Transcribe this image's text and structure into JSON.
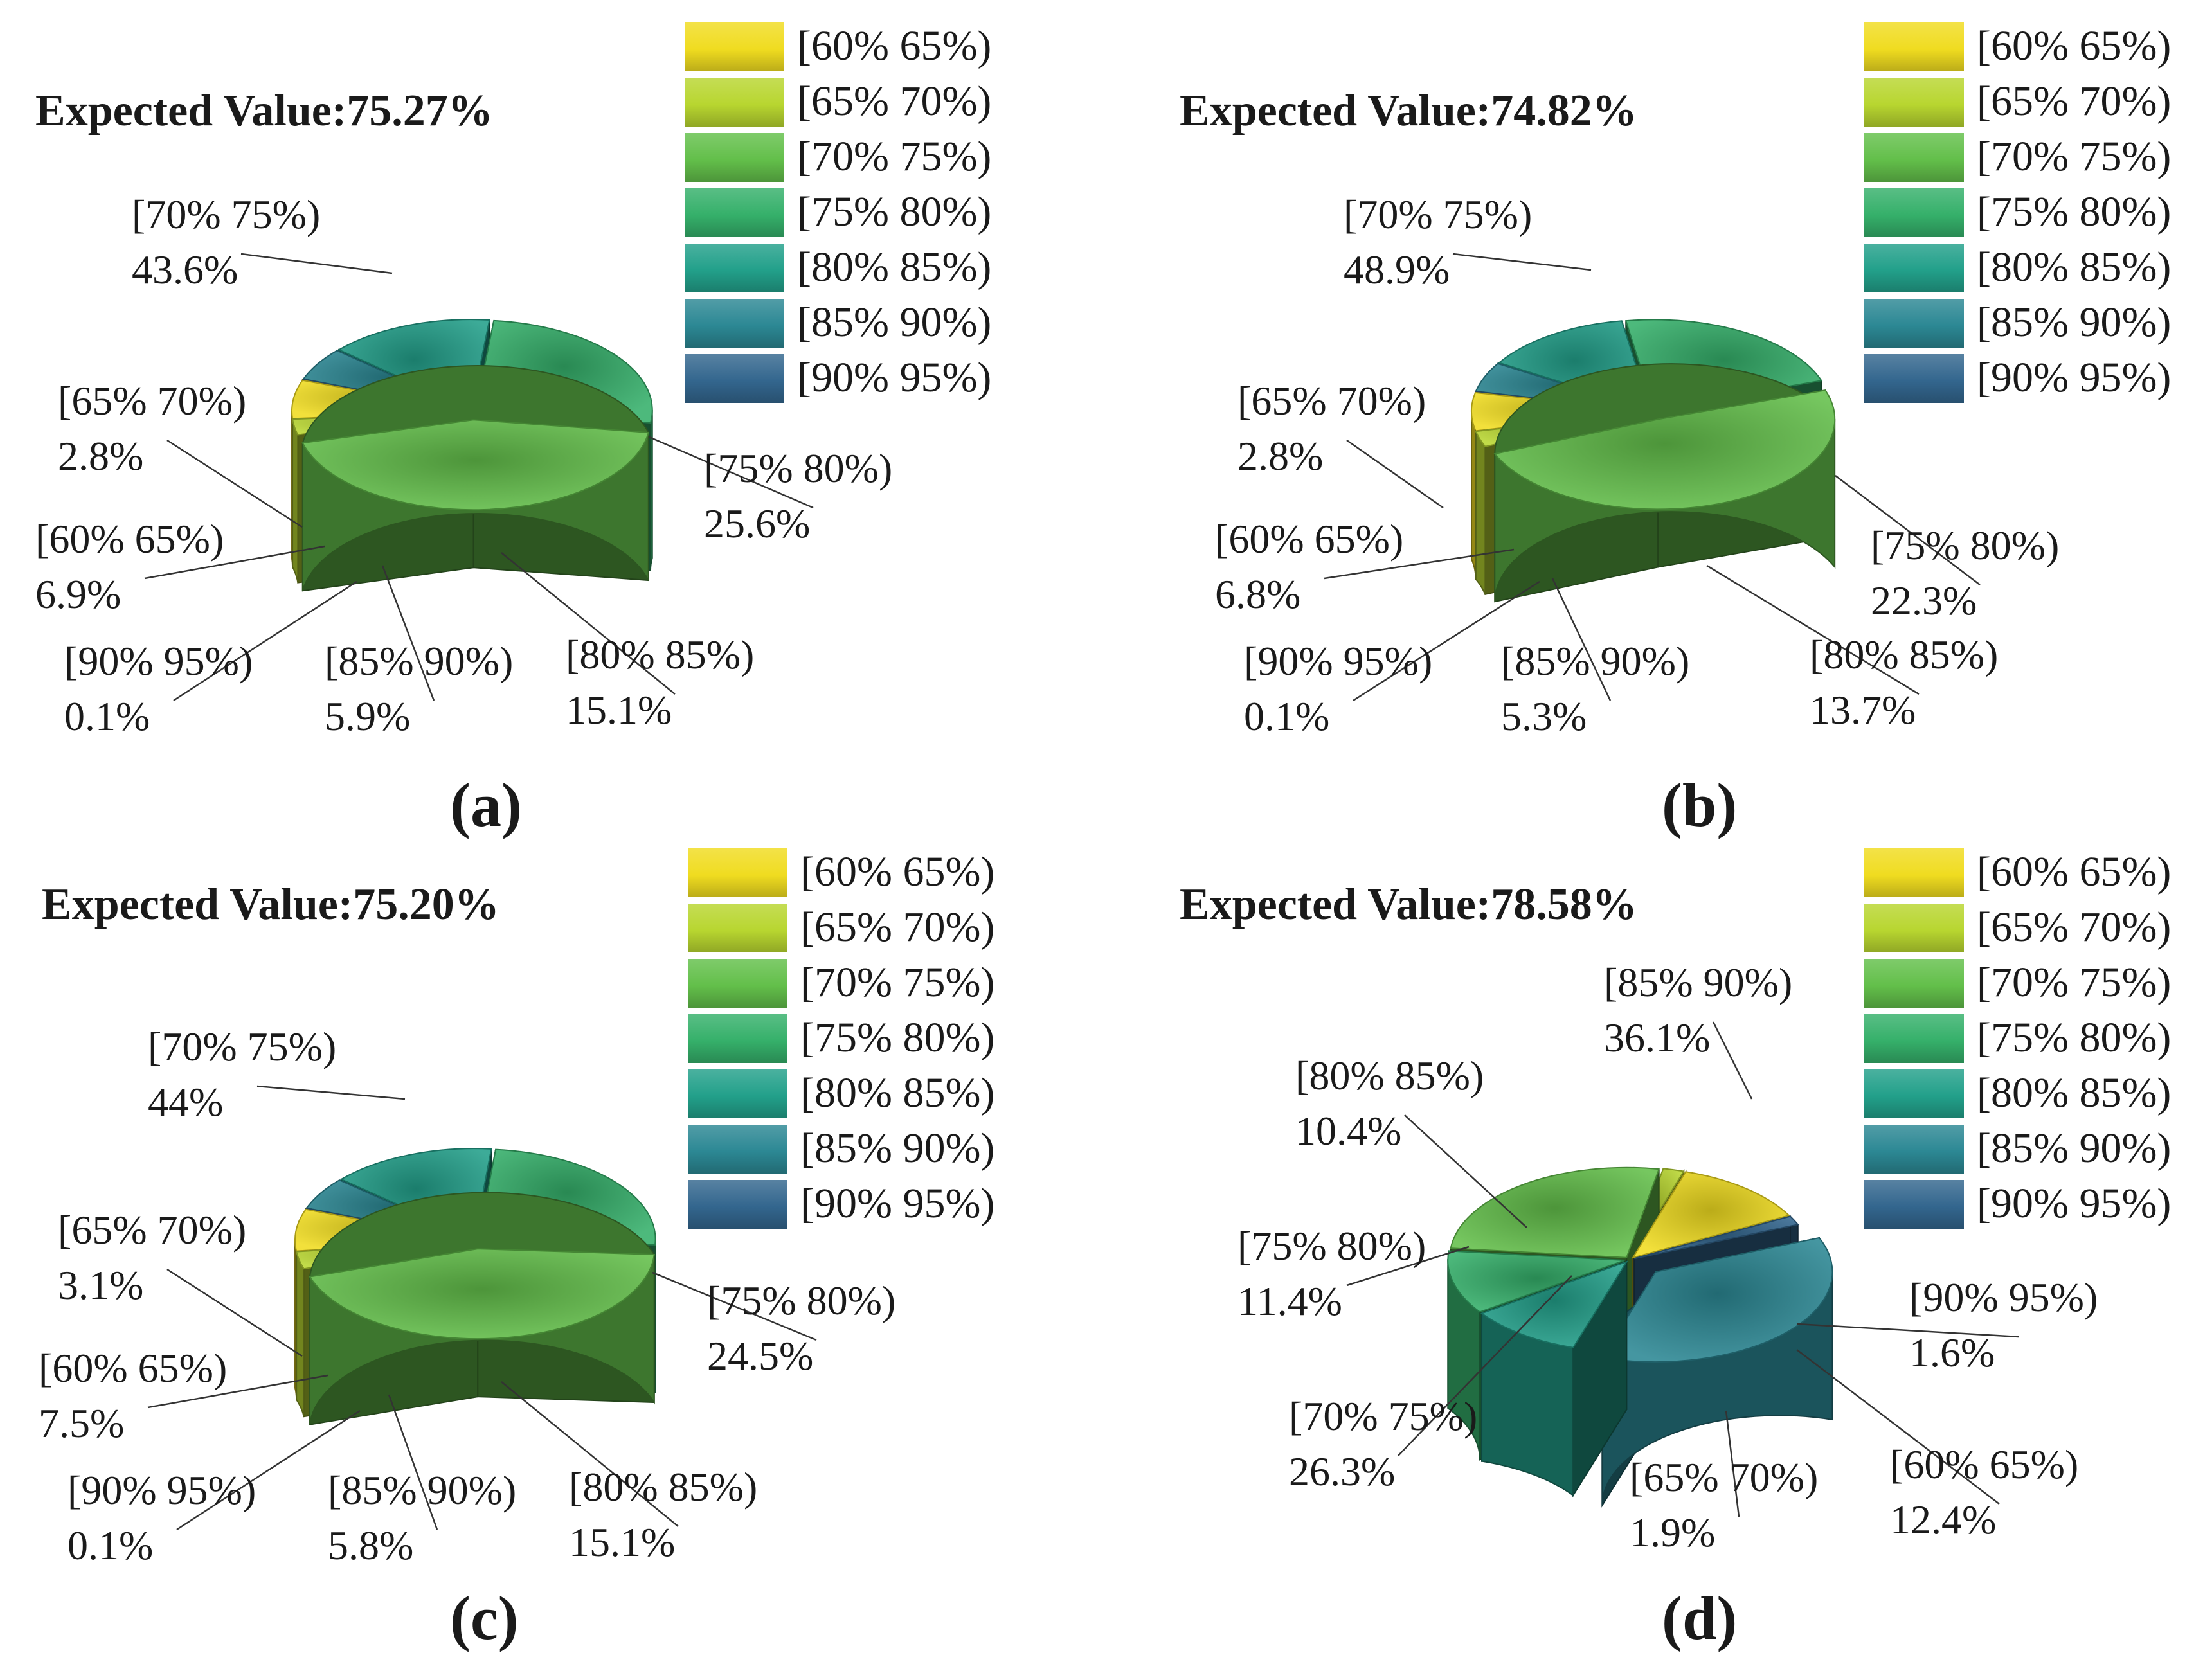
{
  "legend_labels": [
    "[60% 65%)",
    "[65% 70%)",
    "[70% 75%)",
    "[75% 80%)",
    "[80% 85%)",
    "[85% 90%)",
    "[90% 95%)"
  ],
  "colors": {
    "c60": "#f0dc20",
    "c65": "#b8d630",
    "c70": "#63bf4a",
    "c75": "#35b06a",
    "c80": "#22a08a",
    "c85": "#2c8894",
    "c90": "#33668e"
  },
  "chart_data": [
    {
      "type": "pie",
      "panel_label": "(a)",
      "title": "Expected Value:75.27%",
      "categories": [
        "[60% 65%)",
        "[65% 70%)",
        "[70% 75%)",
        "[75% 80%)",
        "[80% 85%)",
        "[85% 90%)",
        "[90% 95%)"
      ],
      "values": [
        6.9,
        2.8,
        43.6,
        25.6,
        15.1,
        5.9,
        0.1
      ],
      "value_labels": [
        "6.9%",
        "2.8%",
        "43.6%",
        "25.6%",
        "15.1%",
        "5.9%",
        "0.1%"
      ],
      "legend_position": "top-right"
    },
    {
      "type": "pie",
      "panel_label": "(b)",
      "title": "Expected Value:74.82%",
      "categories": [
        "[60% 65%)",
        "[65% 70%)",
        "[70% 75%)",
        "[75% 80%)",
        "[80% 85%)",
        "[85% 90%)",
        "[90% 95%)"
      ],
      "values": [
        6.8,
        2.8,
        48.9,
        22.3,
        13.7,
        5.3,
        0.1
      ],
      "value_labels": [
        "6.8%",
        "2.8%",
        "48.9%",
        "22.3%",
        "13.7%",
        "5.3%",
        "0.1%"
      ],
      "legend_position": "top-right"
    },
    {
      "type": "pie",
      "panel_label": "(c)",
      "title": "Expected Value:75.20%",
      "categories": [
        "[60% 65%)",
        "[65% 70%)",
        "[70% 75%)",
        "[75% 80%)",
        "[80% 85%)",
        "[85% 90%)",
        "[90% 95%)"
      ],
      "values": [
        7.5,
        3.1,
        44,
        24.5,
        15.1,
        5.8,
        0.1
      ],
      "value_labels": [
        "7.5%",
        "3.1%",
        "44%",
        "24.5%",
        "15.1%",
        "5.8%",
        "0.1%"
      ],
      "legend_position": "top-right"
    },
    {
      "type": "pie",
      "panel_label": "(d)",
      "title": "Expected Value:78.58%",
      "categories": [
        "[60% 65%)",
        "[65% 70%)",
        "[70% 75%)",
        "[75% 80%)",
        "[80% 85%)",
        "[85% 90%)",
        "[90% 95%)"
      ],
      "values": [
        12.4,
        1.9,
        26.3,
        11.4,
        10.4,
        36.1,
        1.6
      ],
      "value_labels": [
        "12.4%",
        "1.9%",
        "26.3%",
        "11.4%",
        "10.4%",
        "36.1%",
        "1.6%"
      ],
      "legend_position": "top-right"
    }
  ]
}
